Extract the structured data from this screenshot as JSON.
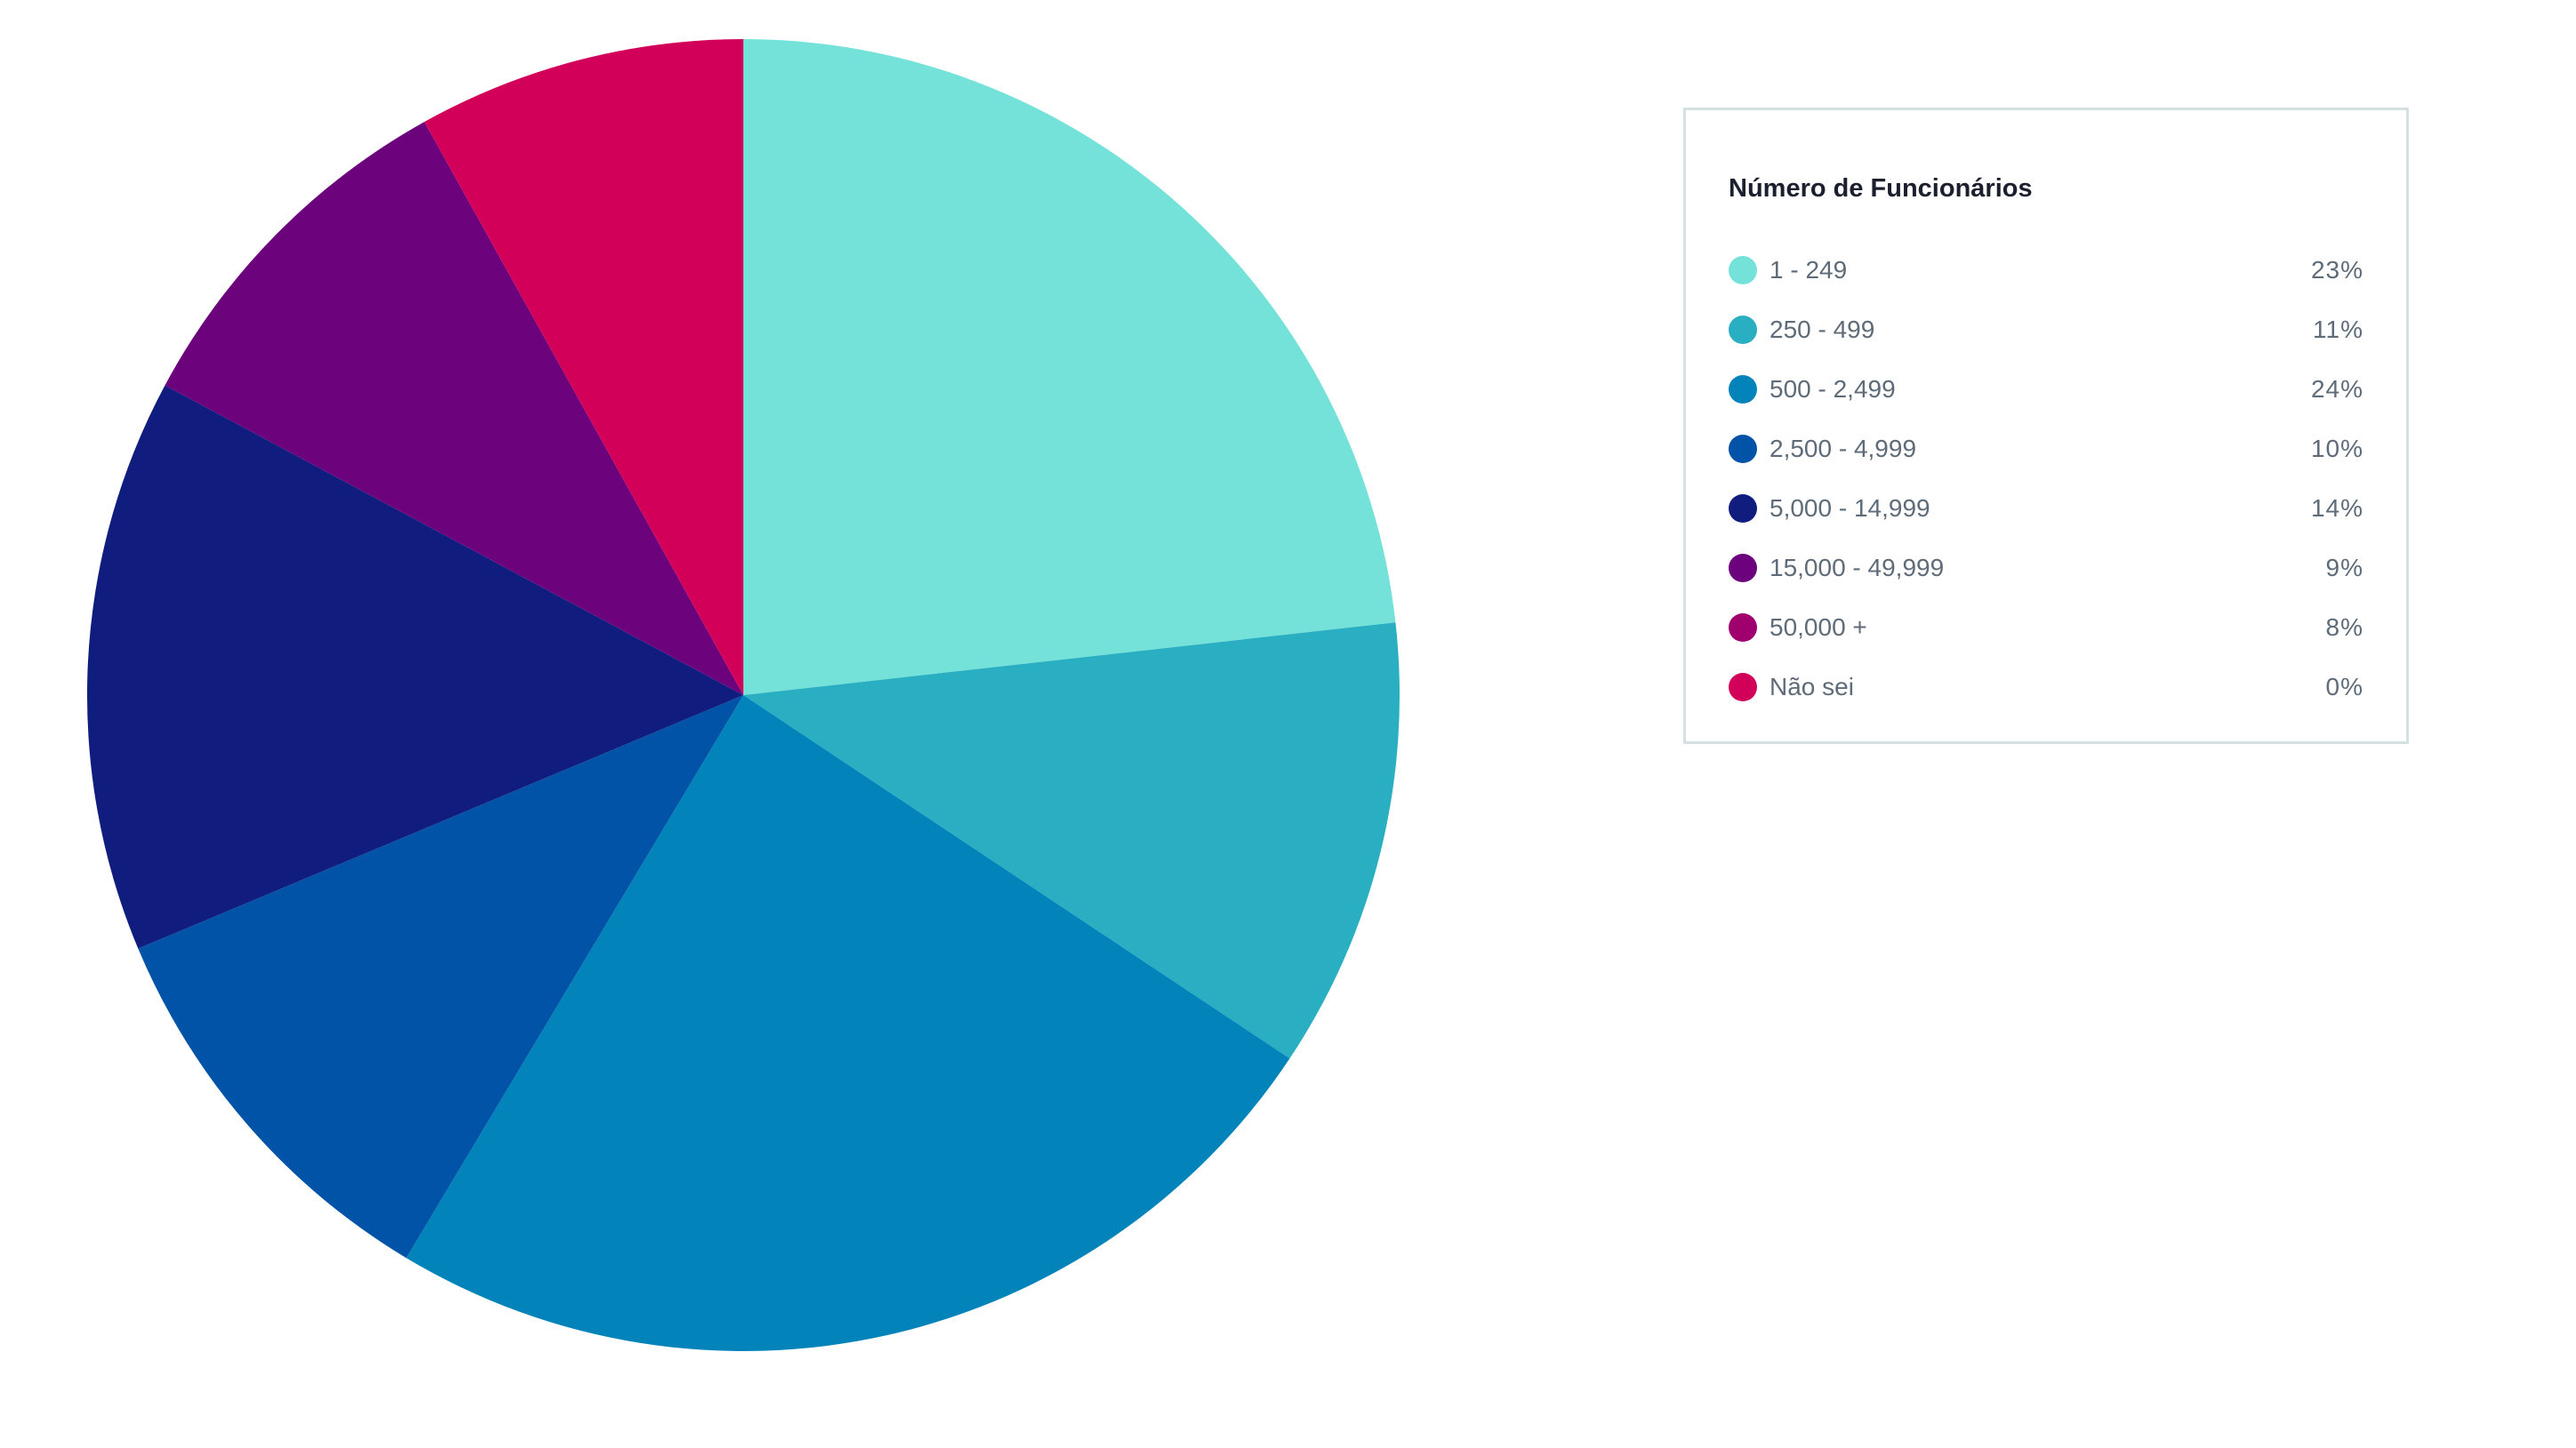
{
  "chart_data": {
    "type": "pie",
    "title": "Número de Funcionários",
    "legend_position": "right",
    "categories": [
      "1 - 249",
      "250 - 499",
      "500 - 2,499",
      "2,500 - 4,999",
      "5,000 - 14,999",
      "15,000 - 49,999",
      "50,000 +",
      "Não sei"
    ],
    "values": [
      23,
      11,
      24,
      10,
      14,
      9,
      8,
      0
    ],
    "value_labels": [
      "23%",
      "11%",
      "24%",
      "10%",
      "14%",
      "9%",
      "8%",
      "0%"
    ],
    "colors": [
      "#74e2d8",
      "#2aafc2",
      "#0284bb",
      "#0053a6",
      "#111d7e",
      "#6c027c",
      "#a0006e",
      "#d3005a"
    ],
    "slice_colors": [
      "#74e2d8",
      "#2aafc2",
      "#0284bb",
      "#0053a6",
      "#111d7e",
      "#6c027c",
      "#d3005a",
      "#d3005a"
    ]
  }
}
